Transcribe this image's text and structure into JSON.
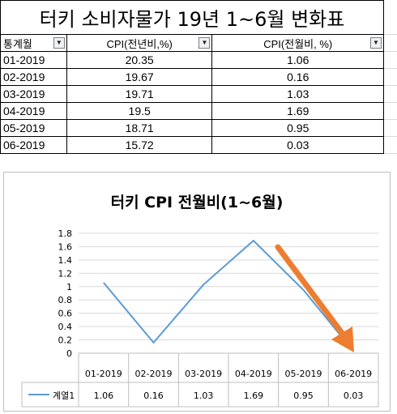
{
  "sheet": {
    "title": "터키 소비자물가 19년 1~6월 변화표",
    "headers": [
      "통계월",
      "CPI(전년비,%)",
      "CPI(전월비, %)"
    ],
    "rows": [
      [
        "01-2019",
        "20.35",
        "1.06"
      ],
      [
        "02-2019",
        "19.67",
        "0.16"
      ],
      [
        "03-2019",
        "19.71",
        "1.03"
      ],
      [
        "04-2019",
        "19.5",
        "1.69"
      ],
      [
        "05-2019",
        "18.71",
        "0.95"
      ],
      [
        "06-2019",
        "15.72",
        "0.03"
      ]
    ]
  },
  "chart_data": {
    "type": "line",
    "title": "터키 CPI 전월비(1~6월)",
    "categories": [
      "01-2019",
      "02-2019",
      "03-2019",
      "04-2019",
      "05-2019",
      "06-2019"
    ],
    "series": [
      {
        "name": "계열1",
        "values": [
          1.06,
          0.16,
          1.03,
          1.69,
          0.95,
          0.03
        ],
        "color": "#5b9bd5"
      }
    ],
    "table_values": [
      "1.06",
      "0.16",
      "1.03",
      "1.69",
      "0.95",
      "0.03"
    ],
    "ylim": [
      0,
      1.8
    ],
    "yticks": [
      "0",
      "0.2",
      "0.4",
      "0.6",
      "0.8",
      "1",
      "1.2",
      "1.4",
      "1.6",
      "1.8"
    ],
    "grid": true,
    "annotation_arrow_color": "#ed7d31"
  }
}
